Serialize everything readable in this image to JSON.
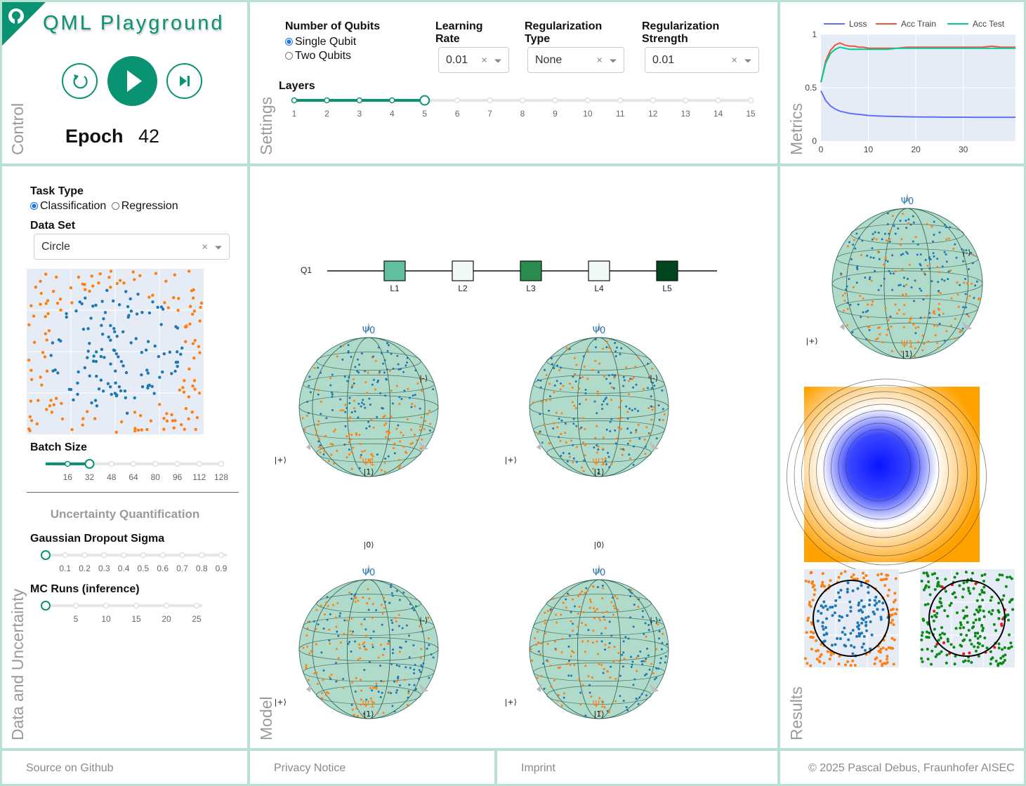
{
  "control": {
    "title": "QML Playground",
    "epoch_label": "Epoch",
    "epoch_value": "42",
    "panel_label": "Control"
  },
  "settings": {
    "panel_label": "Settings",
    "qubits_label": "Number of Qubits",
    "qubit_options": [
      "Single Qubit",
      "Two Qubits"
    ],
    "lr_label_1": "Learning",
    "lr_label_2": "Rate",
    "lr_value": "0.01",
    "regtype_label_1": "Regularization",
    "regtype_label_2": "Type",
    "regtype_value": "None",
    "regstr_label_1": "Regularization",
    "regstr_label_2": "Strength",
    "regstr_value": "0.01",
    "layers_label": "Layers",
    "layers_ticks": [
      "1",
      "2",
      "3",
      "4",
      "5",
      "6",
      "7",
      "8",
      "9",
      "10",
      "11",
      "12",
      "13",
      "14",
      "15"
    ],
    "layers_value": 5
  },
  "metrics": {
    "panel_label": "Metrics",
    "legend": [
      "Loss",
      "Acc Train",
      "Acc Test"
    ],
    "colors": {
      "loss": "#636efa",
      "train": "#ef553b",
      "test": "#00cc96"
    },
    "y_ticks": [
      "0",
      "0.5",
      "1"
    ],
    "x_ticks": [
      "0",
      "10",
      "20",
      "30"
    ]
  },
  "chart_data": {
    "type": "line",
    "x": [
      0,
      1,
      2,
      3,
      4,
      5,
      6,
      7,
      8,
      9,
      10,
      12,
      14,
      16,
      18,
      20,
      22,
      24,
      26,
      28,
      30,
      32,
      34,
      36,
      38,
      40,
      41
    ],
    "series": [
      {
        "name": "Loss",
        "values": [
          0.47,
          0.38,
          0.33,
          0.3,
          0.28,
          0.27,
          0.26,
          0.255,
          0.25,
          0.245,
          0.24,
          0.235,
          0.232,
          0.23,
          0.228,
          0.226,
          0.225,
          0.225,
          0.224,
          0.224,
          0.224,
          0.223,
          0.223,
          0.223,
          0.223,
          0.223,
          0.223
        ]
      },
      {
        "name": "Acc Train",
        "values": [
          0.55,
          0.75,
          0.85,
          0.9,
          0.92,
          0.9,
          0.89,
          0.89,
          0.88,
          0.88,
          0.87,
          0.87,
          0.87,
          0.87,
          0.88,
          0.88,
          0.88,
          0.88,
          0.88,
          0.88,
          0.88,
          0.88,
          0.88,
          0.89,
          0.88,
          0.88,
          0.88
        ]
      },
      {
        "name": "Acc Test",
        "values": [
          0.55,
          0.73,
          0.82,
          0.86,
          0.88,
          0.87,
          0.86,
          0.86,
          0.86,
          0.86,
          0.86,
          0.86,
          0.86,
          0.87,
          0.87,
          0.87,
          0.87,
          0.87,
          0.87,
          0.87,
          0.87,
          0.87,
          0.87,
          0.87,
          0.87,
          0.87,
          0.87
        ]
      }
    ],
    "xlim": [
      0,
      41
    ],
    "ylim": [
      0,
      1
    ]
  },
  "data": {
    "panel_label": "Data and Uncertainty",
    "task_label": "Task Type",
    "task_options": [
      "Classification",
      "Regression"
    ],
    "dataset_label": "Data Set",
    "dataset_value": "Circle",
    "batch_label": "Batch Size",
    "batch_ticks": [
      "16",
      "32",
      "48",
      "64",
      "80",
      "96",
      "112",
      "128"
    ],
    "batch_value": 32,
    "uq_title": "Uncertainty Quantification",
    "sigma_label": "Gaussian Dropout Sigma",
    "sigma_ticks": [
      "0.1",
      "0.2",
      "0.3",
      "0.4",
      "0.5",
      "0.6",
      "0.7",
      "0.8",
      "0.9"
    ],
    "mc_label": "MC Runs (inference)",
    "mc_ticks": [
      "5",
      "10",
      "15",
      "20",
      "25"
    ]
  },
  "model": {
    "panel_label": "Model",
    "qubit": "Q1",
    "gates": [
      "L1",
      "L2",
      "L3",
      "L4",
      "L5"
    ],
    "gate_colors": [
      "#5fbf9f",
      "#f2faf7",
      "#2a8b4e",
      "#f2faf7",
      "#00441b"
    ],
    "ket_zero": "|0⟩",
    "ket_one": "|1⟩",
    "ket_plus": "|+⟩",
    "ket_minus": "|-⟩",
    "psi0": "Ψ0",
    "psi1": "Ψ1"
  },
  "results": {
    "panel_label": "Results"
  },
  "footer": {
    "source": "Source on Github",
    "privacy": "Privacy Notice",
    "imprint": "Imprint",
    "copyright": "© 2025 Pascal Debus, Fraunhofer AISEC"
  },
  "colors": {
    "accent": "#0a9373",
    "border": "#b8e0d3",
    "orange": "#ff7f0e",
    "blue": "#1f77b4"
  }
}
